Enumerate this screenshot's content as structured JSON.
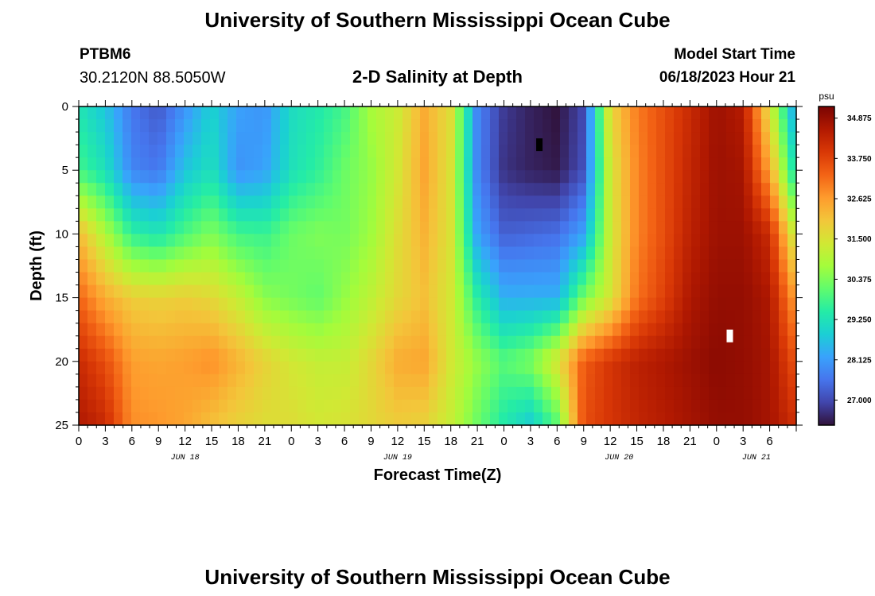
{
  "header": {
    "title": "University of Southern Mississippi Ocean Cube",
    "station_id": "PTBM6",
    "coordinates": "30.2120N  88.5050W",
    "subtitle": "2-D Salinity at Depth",
    "model_start_label": "Model Start Time",
    "model_start_value": "06/18/2023 Hour 21"
  },
  "footer": {
    "title": "University of Southern Mississippi Ocean Cube"
  },
  "colorbar": {
    "unit_label": "psu",
    "tick_labels": [
      "34.875",
      "33.750",
      "32.625",
      "31.500",
      "30.375",
      "29.250",
      "28.125",
      "27.000"
    ],
    "tick_values": [
      34.875,
      33.75,
      32.625,
      31.5,
      30.375,
      29.25,
      28.125,
      27.0
    ],
    "vmin": 26.3,
    "vmax": 35.2,
    "colormap": [
      "#30123b",
      "#4145ab",
      "#4675ed",
      "#39a2fc",
      "#1bcfd4",
      "#24eca6",
      "#61fc6c",
      "#a4fc3b",
      "#d1e834",
      "#f3c63a",
      "#fe9b2d",
      "#f36315",
      "#d93806",
      "#b11901",
      "#7a0403"
    ]
  },
  "chart_data": {
    "type": "heatmap",
    "title": "2-D Salinity at Depth",
    "xlabel": "Forecast Time(Z)",
    "ylabel": "Depth (ft)",
    "value_unit": "psu",
    "x_range_hours": [
      0,
      81
    ],
    "x_tick_labels": [
      "0",
      "3",
      "6",
      "9",
      "12",
      "15",
      "18",
      "21",
      "0",
      "3",
      "6",
      "9",
      "12",
      "15",
      "18",
      "21",
      "0",
      "3",
      "6",
      "9",
      "12",
      "15",
      "18",
      "21",
      "0",
      "3",
      "6"
    ],
    "date_labels": [
      {
        "hour": 12,
        "label": "JUN 18"
      },
      {
        "hour": 36,
        "label": "JUN 19"
      },
      {
        "hour": 61,
        "label": "JUN 20"
      },
      {
        "hour": 76.5,
        "label": "JUN 21"
      }
    ],
    "y_range_ft": [
      0,
      25
    ],
    "y_inverted": true,
    "y_tick_labels": [
      "0",
      "5",
      "10",
      "15",
      "20",
      "25"
    ],
    "y_tick_values": [
      0,
      5,
      10,
      15,
      20,
      25
    ],
    "grid": false,
    "rows_depth_ft": [
      0,
      5,
      10,
      15,
      20,
      25
    ],
    "columns_hour": [
      0,
      3,
      6,
      9,
      12,
      15,
      18,
      21,
      24,
      27,
      30,
      33,
      36,
      39,
      42,
      45,
      48,
      51,
      54,
      57,
      60,
      63,
      66,
      69,
      72,
      75,
      78,
      81
    ],
    "salinity_psu": [
      [
        29.3,
        28.7,
        27.6,
        27.2,
        28.0,
        28.9,
        28.2,
        28.0,
        29.1,
        29.4,
        29.8,
        30.8,
        31.3,
        32.4,
        31.6,
        27.8,
        26.8,
        26.5,
        26.3,
        27.0,
        31.7,
        33.0,
        33.6,
        34.2,
        34.8,
        34.5,
        31.5,
        28.0
      ],
      [
        29.8,
        29.2,
        27.8,
        27.6,
        28.7,
        29.2,
        28.0,
        28.2,
        29.2,
        29.6,
        30.2,
        30.6,
        31.4,
        32.5,
        31.5,
        27.8,
        26.7,
        26.5,
        26.4,
        27.1,
        31.4,
        32.9,
        33.6,
        34.3,
        34.8,
        34.7,
        32.5,
        29.0
      ],
      [
        32.2,
        30.9,
        29.6,
        29.3,
        29.9,
        30.4,
        29.8,
        29.7,
        30.2,
        30.4,
        30.3,
        30.7,
        31.6,
        32.3,
        31.5,
        28.2,
        27.3,
        27.4,
        27.5,
        28.2,
        31.3,
        32.9,
        33.6,
        34.4,
        34.8,
        34.8,
        34.2,
        31.0
      ],
      [
        33.3,
        32.4,
        31.9,
        31.8,
        31.9,
        31.7,
        31.2,
        30.5,
        30.3,
        30.1,
        30.6,
        31.1,
        31.7,
        32.1,
        31.4,
        29.5,
        28.4,
        28.4,
        28.4,
        30.3,
        31.4,
        33.1,
        33.8,
        34.6,
        34.9,
        34.9,
        34.6,
        32.5
      ],
      [
        34.2,
        33.6,
        32.6,
        32.5,
        32.6,
        32.8,
        32.3,
        31.8,
        31.4,
        31.2,
        31.2,
        31.7,
        32.4,
        32.5,
        31.4,
        30.6,
        30.0,
        30.4,
        31.5,
        33.4,
        34.0,
        34.4,
        34.6,
        34.8,
        35.0,
        34.9,
        34.7,
        33.5
      ],
      [
        34.6,
        34.2,
        32.8,
        32.7,
        32.5,
        32.1,
        31.8,
        31.6,
        31.6,
        31.4,
        31.5,
        31.7,
        31.9,
        31.8,
        31.2,
        30.2,
        29.4,
        28.8,
        30.0,
        33.6,
        34.0,
        34.3,
        34.5,
        34.7,
        34.9,
        34.9,
        34.7,
        34.1
      ]
    ],
    "markers": [
      {
        "hour": 52,
        "depth_ft": 3,
        "color": "#000000"
      },
      {
        "hour": 73.5,
        "depth_ft": 18,
        "color": "#ffffff"
      }
    ]
  }
}
